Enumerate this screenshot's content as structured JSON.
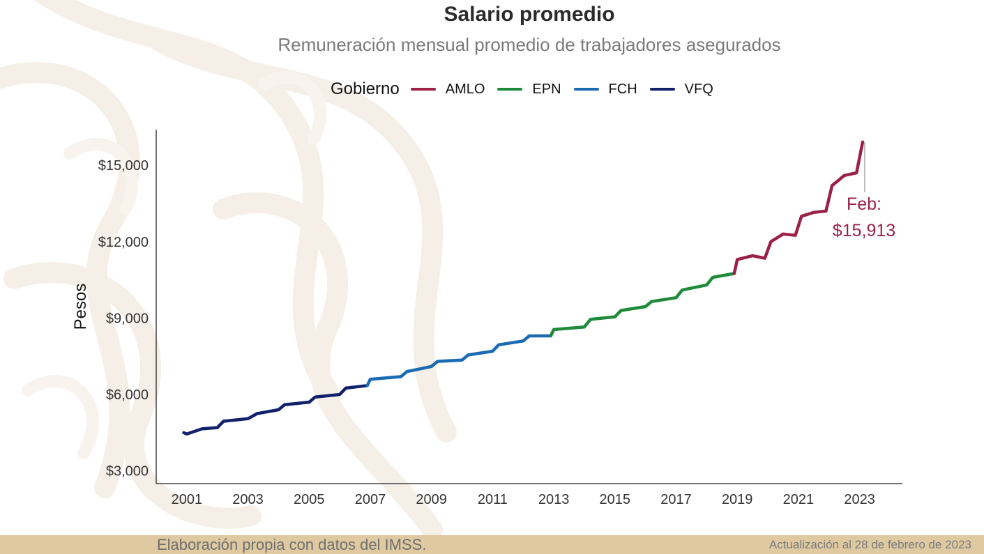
{
  "title": "Salario promedio",
  "subtitle": "Remuneración mensual promedio de trabajadores asegurados",
  "legend": {
    "title": "Gobierno",
    "items": [
      {
        "label": "AMLO",
        "color": "#9b2247"
      },
      {
        "label": "EPN",
        "color": "#1e8a3a"
      },
      {
        "label": "FCH",
        "color": "#1a6bb3"
      },
      {
        "label": "VFQ",
        "color": "#12216b"
      }
    ]
  },
  "ylabel": "Pesos",
  "annotation": {
    "line1": "Feb:",
    "line2": "$15,913",
    "color": "#9b2247"
  },
  "footer": {
    "source": "Elaboración propia con datos del IMSS.",
    "update": "Actualización al 28 de febrero de 2023"
  },
  "chart_data": {
    "type": "line",
    "title": "Salario promedio",
    "subtitle": "Remuneración mensual promedio de trabajadores asegurados",
    "ylabel": "Pesos",
    "xlabel": "",
    "ylim": [
      2500,
      16400
    ],
    "xlim": [
      2000.0,
      2024.4
    ],
    "y_ticks": [
      3000,
      6000,
      9000,
      12000,
      15000
    ],
    "y_tick_labels": [
      "$3,000",
      "$6,000",
      "$9,000",
      "$12,000",
      "$15,000"
    ],
    "x_ticks": [
      2001,
      2003,
      2005,
      2007,
      2009,
      2011,
      2013,
      2015,
      2017,
      2019,
      2021,
      2023
    ],
    "x_tick_labels": [
      "2001",
      "2003",
      "2005",
      "2007",
      "2009",
      "2011",
      "2013",
      "2015",
      "2017",
      "2019",
      "2021",
      "2023"
    ],
    "grid": false,
    "legend_position": "top",
    "series": [
      {
        "name": "VFQ",
        "color": "#12216b",
        "points": [
          [
            2000.9,
            4500
          ],
          [
            2001.0,
            4450
          ],
          [
            2001.5,
            4650
          ],
          [
            2002.0,
            4700
          ],
          [
            2002.2,
            4950
          ],
          [
            2003.0,
            5050
          ],
          [
            2003.3,
            5250
          ],
          [
            2004.0,
            5400
          ],
          [
            2004.2,
            5600
          ],
          [
            2005.0,
            5700
          ],
          [
            2005.2,
            5900
          ],
          [
            2006.0,
            6000
          ],
          [
            2006.2,
            6250
          ],
          [
            2006.9,
            6350
          ]
        ]
      },
      {
        "name": "FCH",
        "color": "#1a6bb3",
        "points": [
          [
            2006.9,
            6350
          ],
          [
            2007.0,
            6600
          ],
          [
            2008.0,
            6700
          ],
          [
            2008.2,
            6900
          ],
          [
            2009.0,
            7100
          ],
          [
            2009.2,
            7300
          ],
          [
            2010.0,
            7350
          ],
          [
            2010.2,
            7550
          ],
          [
            2011.0,
            7700
          ],
          [
            2011.2,
            7950
          ],
          [
            2012.0,
            8100
          ],
          [
            2012.2,
            8300
          ],
          [
            2012.9,
            8300
          ]
        ]
      },
      {
        "name": "EPN",
        "color": "#1e8a3a",
        "points": [
          [
            2012.9,
            8300
          ],
          [
            2013.0,
            8550
          ],
          [
            2014.0,
            8650
          ],
          [
            2014.2,
            8950
          ],
          [
            2015.0,
            9050
          ],
          [
            2015.2,
            9300
          ],
          [
            2016.0,
            9450
          ],
          [
            2016.2,
            9650
          ],
          [
            2017.0,
            9800
          ],
          [
            2017.2,
            10100
          ],
          [
            2018.0,
            10300
          ],
          [
            2018.2,
            10600
          ],
          [
            2018.9,
            10750
          ]
        ]
      },
      {
        "name": "AMLO",
        "color": "#9b2247",
        "points": [
          [
            2018.9,
            10750
          ],
          [
            2019.0,
            11300
          ],
          [
            2019.5,
            11450
          ],
          [
            2019.9,
            11350
          ],
          [
            2020.1,
            12000
          ],
          [
            2020.5,
            12300
          ],
          [
            2020.9,
            12250
          ],
          [
            2021.1,
            13000
          ],
          [
            2021.5,
            13150
          ],
          [
            2021.9,
            13200
          ],
          [
            2022.1,
            14200
          ],
          [
            2022.5,
            14600
          ],
          [
            2022.9,
            14700
          ],
          [
            2023.1,
            15913
          ]
        ]
      }
    ],
    "annotation": {
      "x": 2023.1,
      "y": 15913,
      "label": "Feb: $15,913"
    }
  }
}
